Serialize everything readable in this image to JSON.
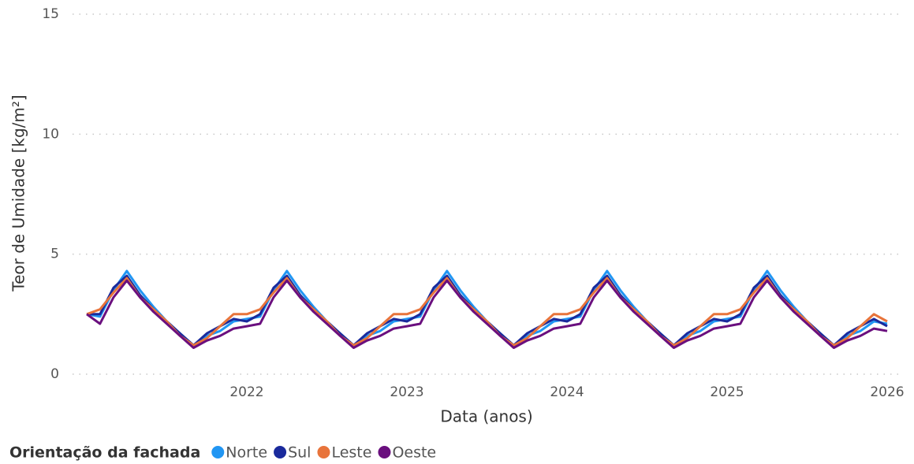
{
  "chart_data": {
    "type": "line",
    "y_label": "Teor de Umidade [kg/m²]",
    "x_label": "Data (anos)",
    "legend_title": "Orientação da fachada",
    "x": [
      2021,
      2021.083,
      2021.167,
      2021.25,
      2021.333,
      2021.417,
      2021.5,
      2021.583,
      2021.667,
      2021.75,
      2021.833,
      2021.917,
      2022,
      2022.083,
      2022.167,
      2022.25,
      2022.333,
      2022.417,
      2022.5,
      2022.583,
      2022.667,
      2022.75,
      2022.833,
      2022.917,
      2023,
      2023.083,
      2023.167,
      2023.25,
      2023.333,
      2023.417,
      2023.5,
      2023.583,
      2023.667,
      2023.75,
      2023.833,
      2023.917,
      2024,
      2024.083,
      2024.167,
      2024.25,
      2024.333,
      2024.417,
      2024.5,
      2024.583,
      2024.667,
      2024.75,
      2024.833,
      2024.917,
      2025,
      2025.083,
      2025.167,
      2025.25,
      2025.333,
      2025.417,
      2025.5,
      2025.583,
      2025.667,
      2025.75,
      2025.833,
      2025.917,
      2026
    ],
    "series": [
      {
        "name": "Norte",
        "color": "#2196f3",
        "values": [
          2.5,
          2.4,
          3.5,
          4.3,
          3.5,
          2.8,
          2.2,
          1.7,
          1.2,
          1.6,
          1.8,
          2.2,
          2.3,
          2.4,
          3.5,
          4.3,
          3.5,
          2.8,
          2.2,
          1.7,
          1.2,
          1.6,
          1.8,
          2.2,
          2.3,
          2.4,
          3.5,
          4.3,
          3.5,
          2.8,
          2.2,
          1.7,
          1.2,
          1.6,
          1.8,
          2.2,
          2.3,
          2.4,
          3.5,
          4.3,
          3.5,
          2.8,
          2.2,
          1.7,
          1.2,
          1.6,
          1.8,
          2.2,
          2.3,
          2.4,
          3.5,
          4.3,
          3.5,
          2.8,
          2.2,
          1.7,
          1.2,
          1.6,
          1.8,
          2.2,
          2.1
        ]
      },
      {
        "name": "Sul",
        "color": "#1a2a9c",
        "values": [
          2.5,
          2.5,
          3.6,
          4.1,
          3.3,
          2.7,
          2.2,
          1.7,
          1.2,
          1.7,
          2.0,
          2.3,
          2.2,
          2.5,
          3.6,
          4.1,
          3.3,
          2.7,
          2.2,
          1.7,
          1.2,
          1.7,
          2.0,
          2.3,
          2.2,
          2.5,
          3.6,
          4.1,
          3.3,
          2.7,
          2.2,
          1.7,
          1.2,
          1.7,
          2.0,
          2.3,
          2.2,
          2.5,
          3.6,
          4.1,
          3.3,
          2.7,
          2.2,
          1.7,
          1.2,
          1.7,
          2.0,
          2.3,
          2.2,
          2.5,
          3.6,
          4.1,
          3.3,
          2.7,
          2.2,
          1.7,
          1.2,
          1.7,
          2.0,
          2.3,
          2.0
        ]
      },
      {
        "name": "Leste",
        "color": "#e8743b",
        "values": [
          2.5,
          2.7,
          3.4,
          4.0,
          3.2,
          2.7,
          2.2,
          1.6,
          1.2,
          1.5,
          2.0,
          2.5,
          2.5,
          2.7,
          3.4,
          4.0,
          3.2,
          2.7,
          2.2,
          1.6,
          1.2,
          1.5,
          2.0,
          2.5,
          2.5,
          2.7,
          3.4,
          4.0,
          3.2,
          2.7,
          2.2,
          1.6,
          1.2,
          1.5,
          2.0,
          2.5,
          2.5,
          2.7,
          3.4,
          4.0,
          3.2,
          2.7,
          2.2,
          1.6,
          1.2,
          1.5,
          2.0,
          2.5,
          2.5,
          2.7,
          3.4,
          4.0,
          3.2,
          2.7,
          2.2,
          1.6,
          1.2,
          1.5,
          2.0,
          2.5,
          2.2
        ]
      },
      {
        "name": "Oeste",
        "color": "#6a0f7e",
        "values": [
          2.5,
          2.1,
          3.2,
          3.9,
          3.2,
          2.6,
          2.1,
          1.6,
          1.1,
          1.4,
          1.6,
          1.9,
          2.0,
          2.1,
          3.2,
          3.9,
          3.2,
          2.6,
          2.1,
          1.6,
          1.1,
          1.4,
          1.6,
          1.9,
          2.0,
          2.1,
          3.2,
          3.9,
          3.2,
          2.6,
          2.1,
          1.6,
          1.1,
          1.4,
          1.6,
          1.9,
          2.0,
          2.1,
          3.2,
          3.9,
          3.2,
          2.6,
          2.1,
          1.6,
          1.1,
          1.4,
          1.6,
          1.9,
          2.0,
          2.1,
          3.2,
          3.9,
          3.2,
          2.6,
          2.1,
          1.6,
          1.1,
          1.4,
          1.6,
          1.9,
          1.8
        ]
      }
    ],
    "xlim": [
      2021,
      2026
    ],
    "xticks": [
      2022,
      2023,
      2024,
      2025,
      2026
    ],
    "ylim": [
      0,
      15
    ],
    "yticks": [
      0,
      5,
      10,
      15
    ],
    "grid": true
  }
}
